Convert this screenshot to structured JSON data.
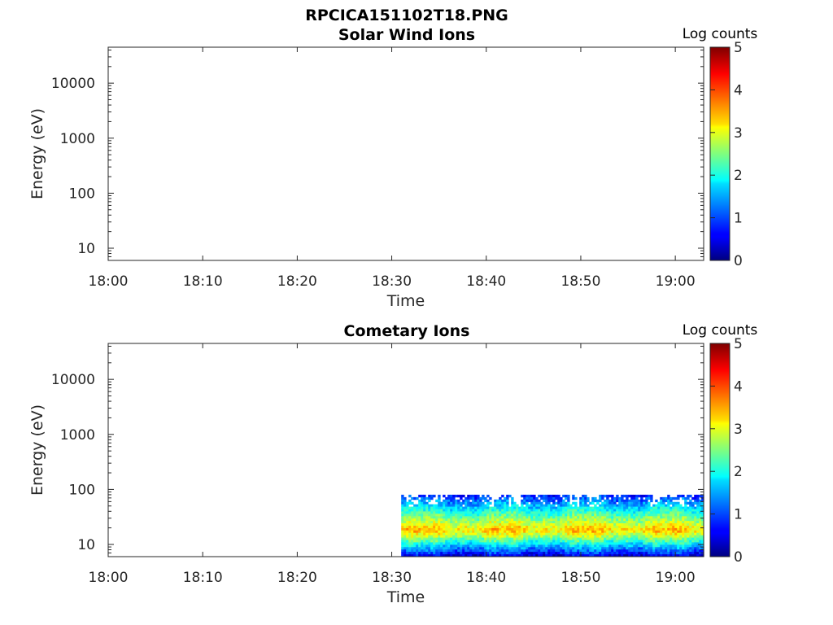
{
  "figure": {
    "title": "RPCICA151102T18.PNG"
  },
  "chart_data": [
    {
      "type": "heatmap",
      "title": "Solar Wind Ions",
      "xlabel": "Time",
      "ylabel": "Energy (eV)",
      "x_ticks": [
        "18:00",
        "18:10",
        "18:20",
        "18:30",
        "18:40",
        "18:50",
        "19:00"
      ],
      "x_range_minutes": [
        0,
        63
      ],
      "y_scale": "log",
      "y_ticks": [
        10,
        100,
        1000,
        10000
      ],
      "y_tick_labels": [
        "10",
        "100",
        "1000",
        "10000"
      ],
      "y_range": [
        6,
        45000
      ],
      "colorbar": {
        "label": "Log counts",
        "range": [
          0,
          5
        ],
        "ticks": [
          "0",
          "1",
          "2",
          "3",
          "4",
          "5"
        ],
        "colormap": "jet"
      },
      "data": {
        "start_minute": null,
        "end_minute": null,
        "segments": []
      }
    },
    {
      "type": "heatmap",
      "title": "Cometary Ions",
      "xlabel": "Time",
      "ylabel": "Energy (eV)",
      "x_ticks": [
        "18:00",
        "18:10",
        "18:20",
        "18:30",
        "18:40",
        "18:50",
        "19:00"
      ],
      "x_range_minutes": [
        0,
        63
      ],
      "y_scale": "log",
      "y_ticks": [
        10,
        100,
        1000,
        10000
      ],
      "y_tick_labels": [
        "10",
        "100",
        "1000",
        "10000"
      ],
      "y_range": [
        6,
        45000
      ],
      "colorbar": {
        "label": "Log counts",
        "range": [
          0,
          5
        ],
        "ticks": [
          "0",
          "1",
          "2",
          "3",
          "4",
          "5"
        ],
        "colormap": "jet"
      },
      "data": {
        "start_minute": 31,
        "end_minute": 63,
        "energy_min_eV": 6,
        "energy_max_eV": 80,
        "peak_energy_eV": 18,
        "peak_log_counts": 3.4,
        "upper_edge_log_counts": 0.8,
        "lower_edge_log_counts": 0.4
      }
    }
  ]
}
